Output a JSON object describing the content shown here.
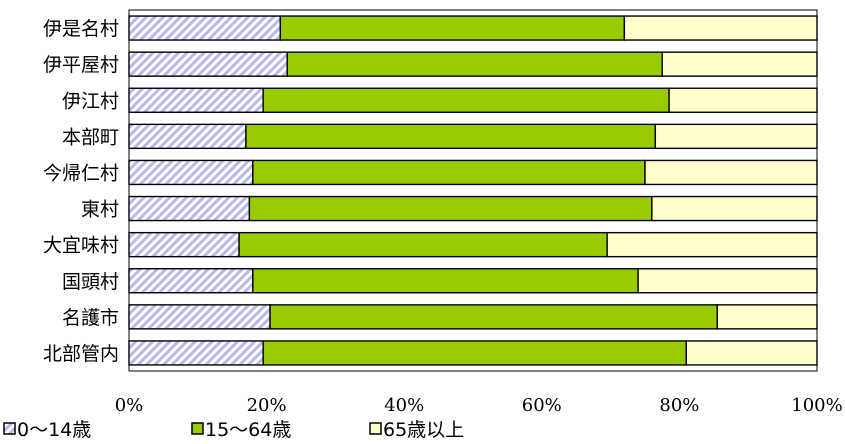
{
  "chart_data": {
    "type": "bar",
    "orientation": "horizontal",
    "stacked": true,
    "percent_stacked": true,
    "categories": [
      "伊是名村",
      "伊平屋村",
      "伊江村",
      "本部町",
      "今帰仁村",
      "東村",
      "大宜味村",
      "国頭村",
      "名護市",
      "北部管内"
    ],
    "series": [
      {
        "name": "0～14歳",
        "color": "#b8b8ee",
        "pattern": "diagonal-hatch",
        "values": [
          22.0,
          23.0,
          19.5,
          17.0,
          18.0,
          17.5,
          16.0,
          18.0,
          20.5,
          19.5
        ]
      },
      {
        "name": "15～64歳",
        "color": "#99cc00",
        "pattern": "solid",
        "values": [
          50.0,
          54.5,
          59.0,
          59.5,
          57.0,
          58.5,
          53.5,
          56.0,
          65.0,
          61.5
        ]
      },
      {
        "name": "65歳以上",
        "color": "#ffffcc",
        "pattern": "solid",
        "values": [
          28.0,
          22.5,
          21.5,
          23.5,
          25.0,
          24.0,
          30.5,
          26.0,
          14.5,
          19.0
        ]
      }
    ],
    "xlim": [
      0,
      100
    ],
    "x_ticks": [
      "0%",
      "20%",
      "40%",
      "60%",
      "80%",
      "100%"
    ],
    "legend_position": "bottom-left",
    "grid": false
  }
}
